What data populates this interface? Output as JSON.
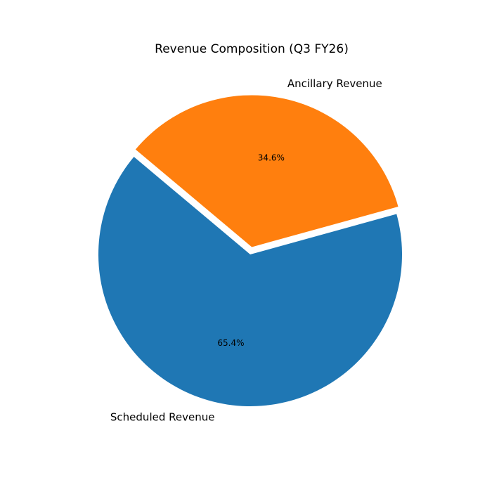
{
  "chart_data": {
    "type": "pie",
    "title": "Revenue Composition (Q3 FY26)",
    "categories": [
      "Scheduled Revenue",
      "Ancillary Revenue"
    ],
    "values": [
      65.4,
      34.6
    ],
    "value_labels": [
      "65.4%",
      "34.6%"
    ],
    "colors": [
      "#1f77b4",
      "#ff7f0e"
    ],
    "explode": [
      0,
      0.05
    ]
  }
}
